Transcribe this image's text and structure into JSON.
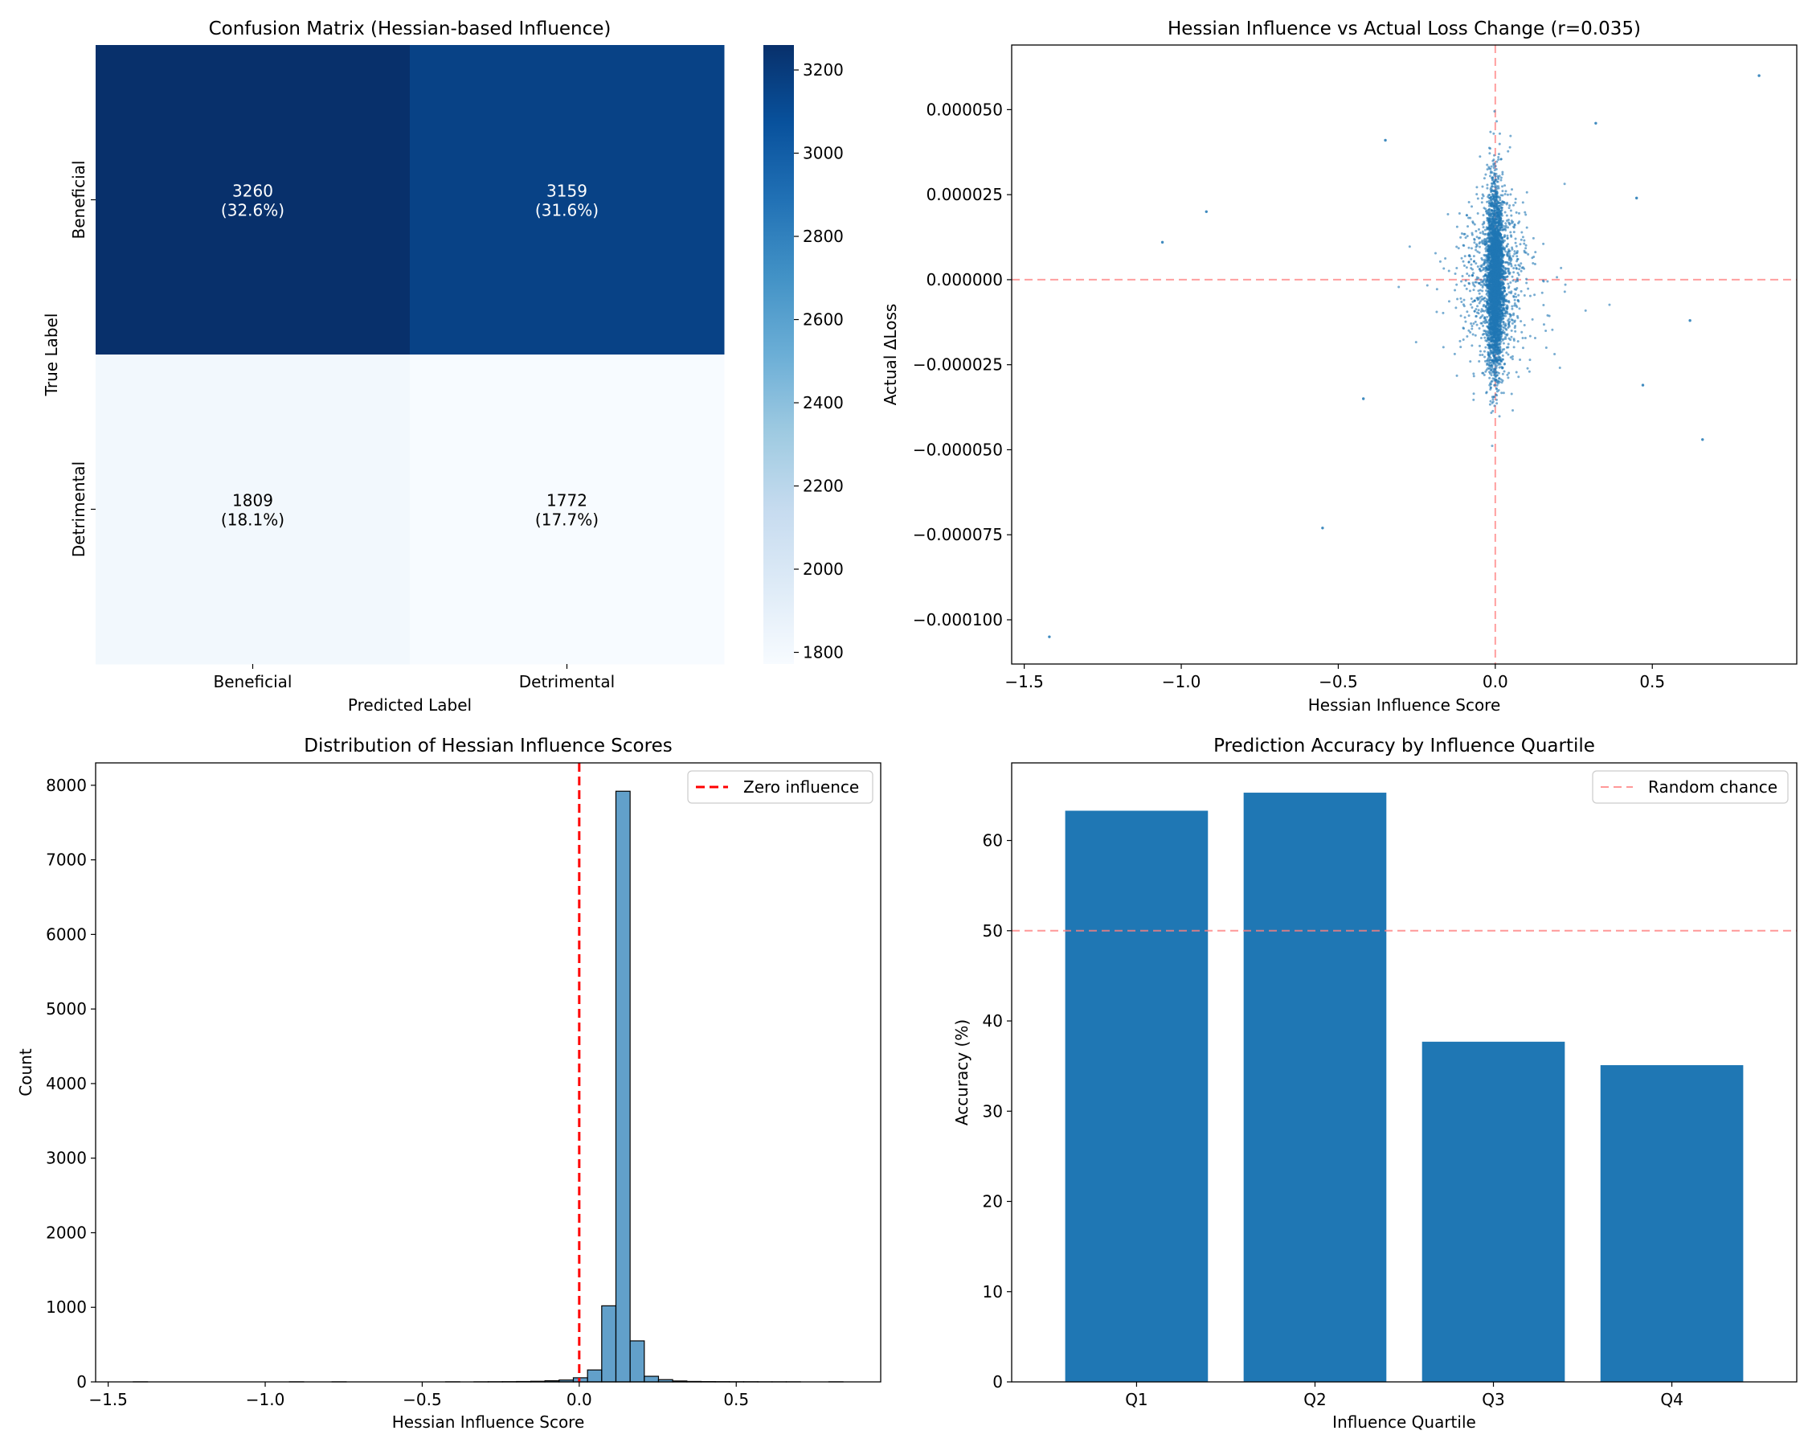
{
  "chart_data": [
    {
      "type": "heatmap",
      "title": "Confusion Matrix (Hessian-based Influence)",
      "xlabel": "Predicted Label",
      "ylabel": "True Label",
      "x_categories": [
        "Beneficial",
        "Detrimental"
      ],
      "y_categories": [
        "Beneficial",
        "Detrimental"
      ],
      "values": [
        [
          3260,
          3159
        ],
        [
          1809,
          1772
        ]
      ],
      "cell_labels": [
        [
          "3260",
          "(32.6%)",
          "3159",
          "(31.6%)"
        ],
        [
          "1809",
          "(18.1%)",
          "1772",
          "(17.7%)"
        ]
      ],
      "colorbar": {
        "range": [
          1772,
          3260
        ],
        "ticks": [
          "1800",
          "2000",
          "2200",
          "2400",
          "2600",
          "2800",
          "3000",
          "3200"
        ],
        "colormap": "Blues"
      }
    },
    {
      "type": "scatter",
      "title": "Hessian Influence vs Actual Loss Change (r=0.035)",
      "xlabel": "Hessian Influence Score",
      "ylabel": "Actual ΔLoss",
      "xlim": [
        -1.54,
        0.96
      ],
      "ylim": [
        -0.000113,
        6.9e-05
      ],
      "xticks": [
        "−1.5",
        "−1.0",
        "−0.5",
        "0.0",
        "0.5"
      ],
      "yticks": [
        "−0.000100",
        "−0.000075",
        "−0.000050",
        "−0.000025",
        "0.000000",
        "0.000025",
        "0.000050"
      ],
      "reference_lines": {
        "x": 0,
        "y": 0,
        "color": "#ff7f7f",
        "style": "dashed"
      },
      "point_color": "#1f77b4",
      "approx_point_count": 10000,
      "outliers": [
        {
          "x": -1.42,
          "y": -0.000105
        },
        {
          "x": 0.84,
          "y": 6e-05
        },
        {
          "x": -1.06,
          "y": 1.1e-05
        },
        {
          "x": -0.92,
          "y": 2e-05
        },
        {
          "x": -0.55,
          "y": -7.3e-05
        },
        {
          "x": 0.66,
          "y": -4.7e-05
        },
        {
          "x": -0.42,
          "y": -3.5e-05
        },
        {
          "x": 0.47,
          "y": -3.1e-05
        },
        {
          "x": 0.62,
          "y": -1.2e-05
        },
        {
          "x": 0.45,
          "y": 2.4e-05
        },
        {
          "x": 0.32,
          "y": 4.6e-05
        },
        {
          "x": -0.35,
          "y": 4.1e-05
        }
      ]
    },
    {
      "type": "bar",
      "subtype": "histogram",
      "title": "Distribution of Hessian Influence Scores",
      "xlabel": "Hessian Influence Score",
      "ylabel": "Count",
      "xlim": [
        -1.54,
        0.96
      ],
      "ylim": [
        0,
        8300
      ],
      "xticks": [
        "−1.5",
        "−1.0",
        "−0.5",
        "0.0",
        "0.5"
      ],
      "yticks": [
        "0",
        "1000",
        "2000",
        "3000",
        "4000",
        "5000",
        "6000",
        "7000",
        "8000"
      ],
      "bin_range": [
        -1.42,
        0.84
      ],
      "bin_count": 50,
      "bin_values": [
        1,
        0,
        0,
        0,
        0,
        0,
        0,
        0,
        0,
        0,
        0,
        1,
        0,
        0,
        1,
        0,
        0,
        0,
        0,
        0,
        0,
        0,
        1,
        0,
        1,
        2,
        3,
        5,
        8,
        15,
        25,
        55,
        160,
        1020,
        7920,
        550,
        75,
        30,
        12,
        6,
        4,
        3,
        2,
        2,
        1,
        1,
        1,
        0,
        0,
        1
      ],
      "bar_color": "#1f77b4",
      "bar_alpha": 0.7,
      "reference_line": {
        "x": 0,
        "color": "#ff0000",
        "style": "dashed",
        "label": "Zero influence"
      },
      "legend": {
        "position": "upper right",
        "entries": [
          "Zero influence"
        ]
      }
    },
    {
      "type": "bar",
      "title": "Prediction Accuracy by Influence Quartile",
      "xlabel": "Influence Quartile",
      "ylabel": "Accuracy (%)",
      "categories": [
        "Q1",
        "Q2",
        "Q3",
        "Q4"
      ],
      "values": [
        63.3,
        65.3,
        37.7,
        35.1
      ],
      "ylim": [
        0,
        68.6
      ],
      "yticks": [
        "0",
        "10",
        "20",
        "30",
        "40",
        "50",
        "60"
      ],
      "bar_color": "#1f77b4",
      "reference_line": {
        "y": 50,
        "color": "#ff7f7f",
        "style": "dashed",
        "label": "Random chance"
      },
      "legend": {
        "position": "upper right",
        "entries": [
          "Random chance"
        ]
      }
    }
  ]
}
